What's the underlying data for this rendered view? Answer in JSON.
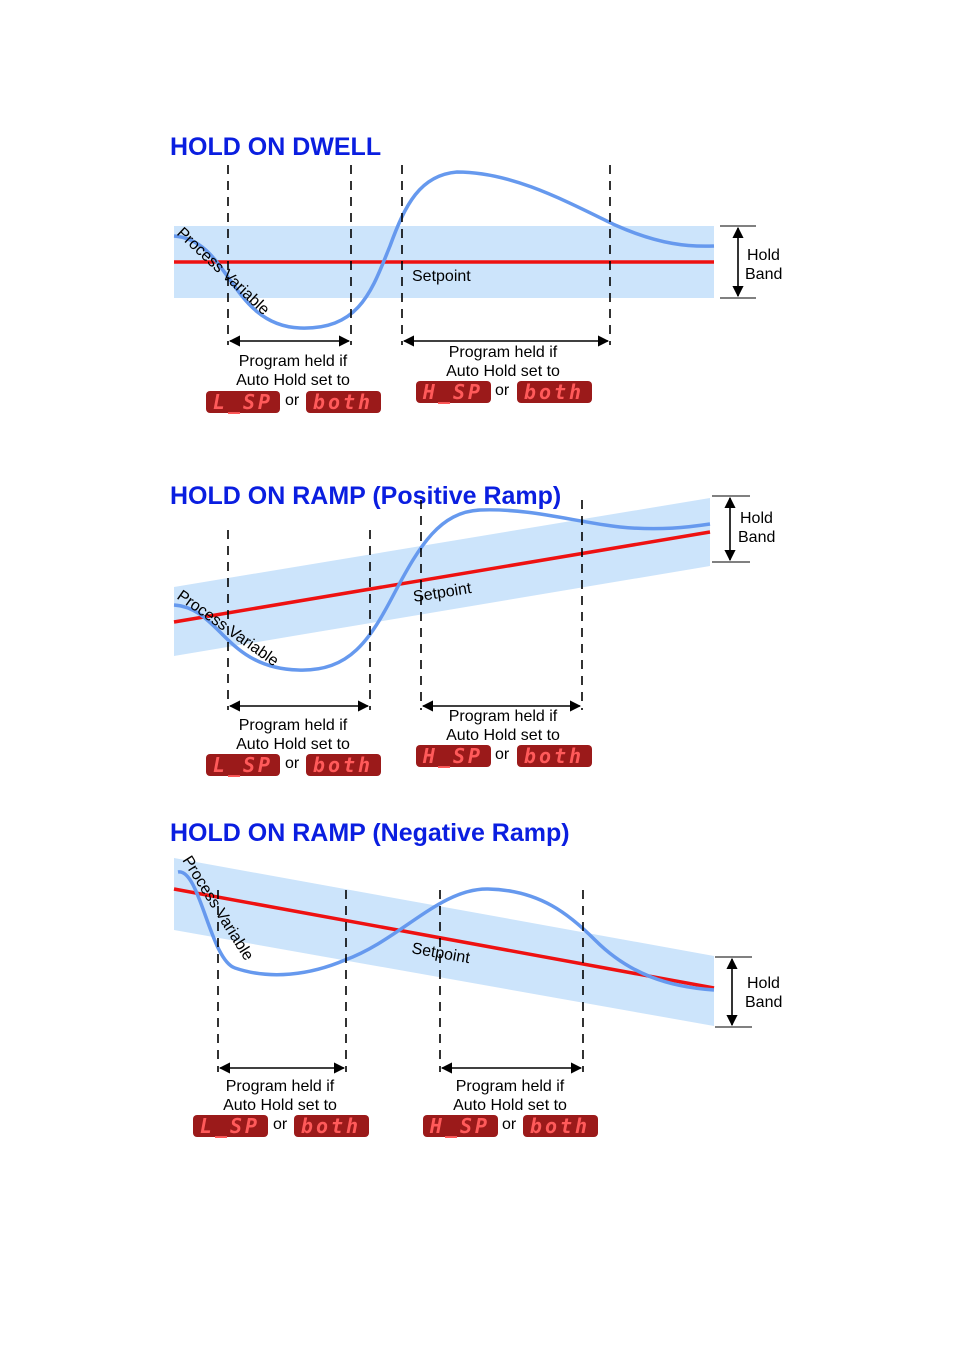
{
  "colors": {
    "title": "#0a1ee0",
    "band": "#cce4fb",
    "setpoint": "#ee1111",
    "process_variable": "#6699ee",
    "display_bg": "#9b1a1a",
    "display_text": "#ff5a5a"
  },
  "sections": [
    {
      "title": "HOLD ON DWELL",
      "pv_label": "Process Variable",
      "setpoint_label": "Setpoint",
      "band_label": [
        "Hold",
        "Band"
      ],
      "held_left": {
        "line1": "Program held if",
        "line2": "Auto Hold set to",
        "code": "L_SP",
        "or": "or",
        "code2": "both"
      },
      "held_right": {
        "line1": "Program held if",
        "line2": "Auto Hold set to",
        "code": "H_SP",
        "or": "or",
        "code2": "both"
      }
    },
    {
      "title": "HOLD ON RAMP (Positive Ramp)",
      "pv_label": "Process Variable",
      "setpoint_label": "Setpoint",
      "band_label": [
        "Hold",
        "Band"
      ],
      "held_left": {
        "line1": "Program held if",
        "line2": "Auto Hold set to",
        "code": "L_SP",
        "or": "or",
        "code2": "both"
      },
      "held_right": {
        "line1": "Program held if",
        "line2": "Auto Hold set to",
        "code": "H_SP",
        "or": "or",
        "code2": "both"
      }
    },
    {
      "title": "HOLD ON RAMP (Negative Ramp)",
      "pv_label": "Process Variable",
      "setpoint_label": "Setpoint",
      "band_label": [
        "Hold",
        "Band"
      ],
      "held_left": {
        "line1": "Program held if",
        "line2": "Auto Hold set to",
        "code": "L_SP",
        "or": "or",
        "code2": "both"
      },
      "held_right": {
        "line1": "Program held if",
        "line2": "Auto Hold set to",
        "code": "H_SP",
        "or": "or",
        "code2": "both"
      }
    }
  ]
}
